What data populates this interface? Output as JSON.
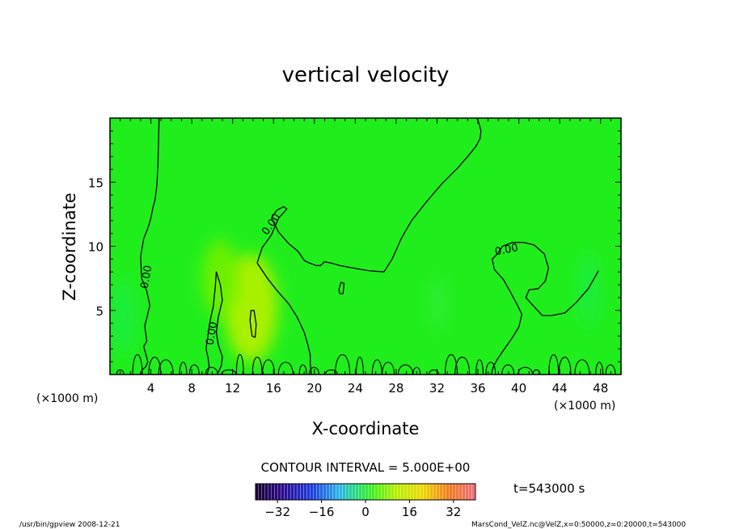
{
  "chart_data": {
    "type": "contour",
    "title": "vertical velocity",
    "xlabel": "X-coordinate",
    "ylabel": "Z-coordinate",
    "x_unit": "(×1000 m)",
    "y_unit": "(×1000 m)",
    "xlim": [
      0,
      50
    ],
    "ylim": [
      0,
      20
    ],
    "x_ticks": [
      4,
      8,
      12,
      16,
      20,
      24,
      28,
      32,
      36,
      40,
      44,
      48
    ],
    "y_ticks": [
      5,
      10,
      15
    ],
    "contour_interval_text": "CONTOUR INTERVAL = 5.000E+00",
    "contour_label": "0.00",
    "time_text": "t=543000 s",
    "colorbar": {
      "range": [
        -40,
        40
      ],
      "ticks": [
        -32,
        -16,
        0,
        16,
        32
      ]
    },
    "zero_contours": [
      {
        "x": [
          4.8,
          4.7,
          4.6,
          4.4,
          4.2,
          4.0,
          3.7,
          3.3,
          3.0,
          3.1,
          3.6,
          3.9,
          3.6,
          3.4,
          3.6,
          3.3,
          3.5,
          3.7,
          3.5,
          3.2,
          3.0
        ],
        "y": [
          20,
          16.5,
          14.8,
          13.6,
          13.0,
          12.2,
          11.4,
          10.6,
          9.2,
          7.5,
          6.5,
          5.4,
          4.4,
          3.8,
          2.6,
          2.2,
          1.6,
          1.0,
          0.6,
          0.4,
          0
        ]
      },
      {
        "x": [
          14.4,
          14.9,
          15.8,
          16.5,
          17.3,
          17.0,
          16.3,
          15.8,
          16.5,
          17.5,
          18.4,
          19.0,
          19.5,
          20.2,
          20.6,
          21.0,
          21.6,
          22.5,
          23.8,
          25.3,
          26.8,
          27.6,
          28.5,
          29.5,
          31.0,
          32.5,
          34.0,
          35.0,
          35.8,
          36.2,
          36.3,
          36.1,
          35.9
        ],
        "y": [
          8.7,
          9.9,
          10.9,
          12.2,
          12.9,
          13.1,
          12.8,
          12.2,
          11.1,
          10.2,
          9.6,
          8.9,
          8.7,
          8.5,
          8.5,
          8.8,
          8.7,
          8.5,
          8.3,
          8.1,
          8.0,
          9.0,
          10.6,
          12.0,
          13.5,
          14.9,
          16.1,
          17.0,
          17.8,
          18.4,
          19.0,
          19.6,
          20
        ]
      },
      {
        "x": [
          14.4,
          15.5,
          16.5,
          17.5,
          18.3,
          19.0,
          19.4,
          19.6,
          19.6,
          19.7
        ],
        "y": [
          8.7,
          7.4,
          6.4,
          5.5,
          4.5,
          3.3,
          2.2,
          1.5,
          0.8,
          0
        ]
      },
      {
        "x": [
          38.0,
          38.4,
          39.4,
          40.5,
          41.5,
          42.5,
          42.9,
          42.6,
          41.9,
          41.0,
          40.7,
          41.6,
          42.3,
          43.2,
          44.5,
          45.6,
          46.8,
          47.8
        ],
        "y": [
          9.5,
          10.0,
          10.3,
          10.3,
          10.1,
          9.4,
          8.3,
          7.3,
          6.7,
          6.6,
          6.0,
          5.2,
          4.6,
          4.6,
          4.8,
          5.6,
          6.7,
          8.1
        ]
      },
      {
        "x": [
          38.0,
          37.4,
          37.6,
          38.5,
          39.2,
          39.8,
          40.3,
          40.0,
          39.3,
          38.6,
          37.9,
          37.5,
          37.3
        ],
        "y": [
          9.5,
          9.0,
          8.2,
          7.4,
          6.4,
          5.5,
          4.7,
          3.7,
          2.8,
          2.0,
          1.2,
          0.6,
          0
        ]
      },
      {
        "x": [
          13.7,
          13.8,
          14.1,
          14.3,
          14.2,
          13.9,
          13.7
        ],
        "y": [
          4.2,
          5.0,
          5.0,
          3.9,
          2.9,
          3.0,
          4.2
        ]
      },
      {
        "x": [
          22.4,
          22.6,
          22.9,
          22.8,
          22.5,
          22.4
        ],
        "y": [
          6.6,
          7.2,
          7.1,
          6.3,
          6.3,
          6.6
        ]
      },
      {
        "x": [
          9.5,
          9.7,
          9.6,
          9.4,
          9.6,
          9.8,
          10.1,
          10.3,
          10.4,
          10.8,
          11.0,
          10.6,
          10.4,
          10.6,
          11.0,
          10.9,
          10.5
        ],
        "y": [
          0,
          0.6,
          1.3,
          2.0,
          3.1,
          4.2,
          5.3,
          6.8,
          8.0,
          7.0,
          5.8,
          4.5,
          3.3,
          2.3,
          1.4,
          0.7,
          0
        ]
      }
    ],
    "contour_label_positions": [
      {
        "x": 3.6,
        "y": 7.6,
        "rot": -80
      },
      {
        "x": 15.8,
        "y": 11.7,
        "rot": -55
      },
      {
        "x": 10.0,
        "y": 3.2,
        "rot": -80
      },
      {
        "x": 38.8,
        "y": 9.7,
        "rot": -12
      }
    ],
    "colored_blobs": [
      {
        "x": 13.8,
        "y": 5.2,
        "rx": 2.6,
        "ry": 4.2,
        "color": "#a9f000"
      },
      {
        "x": 10.8,
        "y": 7.5,
        "rx": 1.8,
        "ry": 3.0,
        "color": "#6bf000"
      },
      {
        "x": 1.3,
        "y": 4.5,
        "rx": 1.0,
        "ry": 3.0,
        "color": "#1ced40"
      },
      {
        "x": 46.8,
        "y": 6.6,
        "rx": 0.9,
        "ry": 3.0,
        "color": "#1ced40"
      },
      {
        "x": 32.1,
        "y": 5.5,
        "rx": 0.9,
        "ry": 2.2,
        "color": "#2aee30"
      }
    ]
  },
  "footer": {
    "left": "/usr/bin/gpview   2008-12-21",
    "right": "MarsCond_VelZ.nc@VelZ,x=0:50000,z=0:20000,t=543000"
  }
}
